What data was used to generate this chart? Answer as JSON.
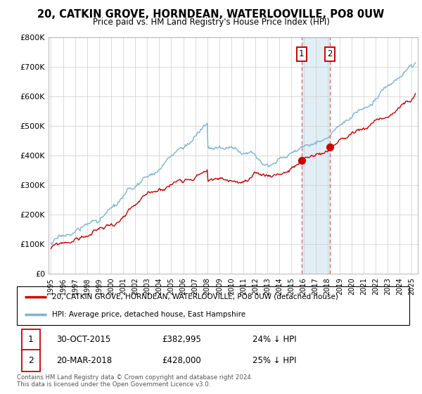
{
  "title1": "20, CATKIN GROVE, HORNDEAN, WATERLOOVILLE, PO8 0UW",
  "title2": "Price paid vs. HM Land Registry's House Price Index (HPI)",
  "legend1": "20, CATKIN GROVE, HORNDEAN, WATERLOOVILLE, PO8 0UW (detached house)",
  "legend2": "HPI: Average price, detached house, East Hampshire",
  "footnote": "Contains HM Land Registry data © Crown copyright and database right 2024.\nThis data is licensed under the Open Government Licence v3.0.",
  "sale1_label": "1",
  "sale1_date": "30-OCT-2015",
  "sale1_price_str": "£382,995",
  "sale1_hpi": "24% ↓ HPI",
  "sale1_year": 2015.83,
  "sale1_price": 382995,
  "sale2_label": "2",
  "sale2_date": "20-MAR-2018",
  "sale2_price_str": "£428,000",
  "sale2_hpi": "25% ↓ HPI",
  "sale2_year": 2018.21,
  "sale2_price": 428000,
  "hpi_color": "#7ab3d4",
  "price_color": "#cc0000",
  "shade_color": "#d0e4f0",
  "ylim_max": 800000,
  "xlim_start": 1994.8,
  "xlim_end": 2025.5,
  "hpi_seed": 17,
  "price_seed": 99
}
